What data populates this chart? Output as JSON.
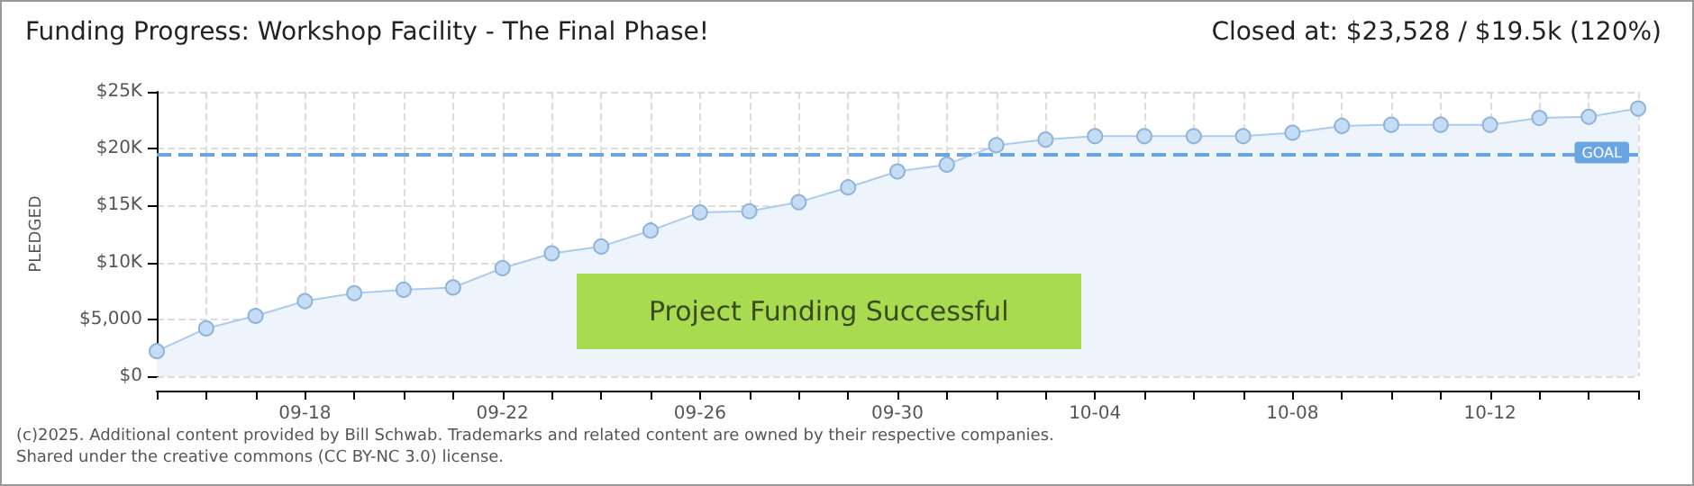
{
  "chart_data": {
    "type": "area",
    "title": "Funding Progress: Workshop Facility - The Final Phase!",
    "subtitle": "Closed at: $23,528 / $19.5k (120%)",
    "ylabel": "PLEDGED",
    "categories": [
      null,
      null,
      null,
      "09-18",
      null,
      null,
      null,
      "09-22",
      null,
      null,
      null,
      "09-26",
      null,
      null,
      null,
      "09-30",
      null,
      null,
      null,
      "10-04",
      null,
      null,
      null,
      "10-08",
      null,
      null,
      null,
      "10-12",
      null,
      null,
      null
    ],
    "series": [
      {
        "color": "#a9cbf0",
        "values": [
          2200,
          4200,
          5300,
          6600,
          7300,
          7600,
          7800,
          9500,
          10800,
          11400,
          12800,
          14400,
          14500,
          15300,
          16600,
          18000,
          18600,
          20300,
          20800,
          21100,
          21100,
          21100,
          21100,
          21400,
          22000,
          22100,
          22100,
          22100,
          22700,
          22800,
          23528
        ]
      }
    ],
    "ylim": [
      0,
      25000
    ],
    "yticks": [
      {
        "value": 0,
        "label": "$0"
      },
      {
        "value": 5000,
        "label": "$5,000"
      },
      {
        "value": 10000,
        "label": "$10K"
      },
      {
        "value": 15000,
        "label": "$15K"
      },
      {
        "value": 20000,
        "label": "$20K"
      },
      {
        "value": 25000,
        "label": "$25K"
      }
    ],
    "ref_lines": [
      {
        "axis": "y",
        "value": 19500,
        "label": "GOAL",
        "color": "#6aa5e3",
        "line_style": "dashed"
      }
    ],
    "annotations": [
      "Project Funding Successful",
      "(c)2025. Additional content provided by Bill Schwab. Trademarks and related content are owned by their respective companies.",
      "Shared under the creative commons (CC BY-NC 3.0) license."
    ],
    "grid": true,
    "marker": "circle",
    "line_style": "solid"
  }
}
